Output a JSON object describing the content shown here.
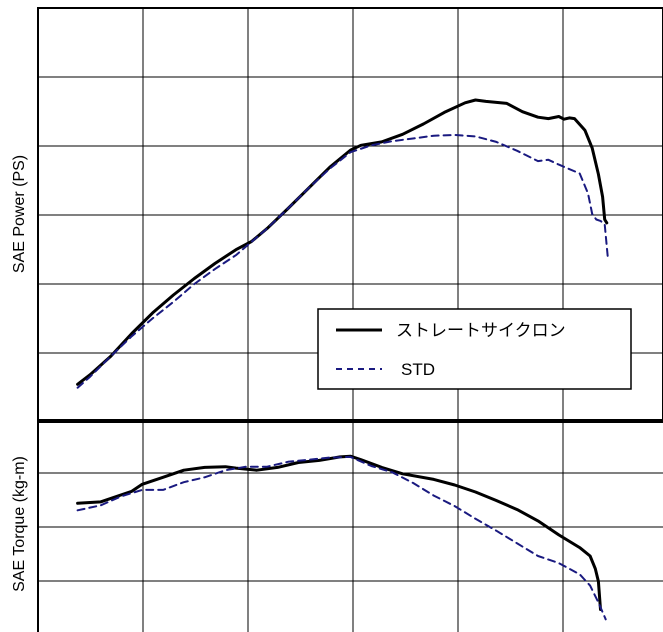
{
  "chart_data": [
    {
      "type": "line",
      "panel": "power",
      "ylabel": "SAE Power (PS)",
      "xlim": [
        0,
        6
      ],
      "ylim": [
        0,
        6
      ],
      "grid": true,
      "legend": {
        "placement": "bottom-right"
      },
      "series": [
        {
          "name": "ストレートサイクロン",
          "color": "#000000",
          "style": "solid",
          "points": [
            [
              0.38,
              0.52
            ],
            [
              0.5,
              0.66
            ],
            [
              0.7,
              0.93
            ],
            [
              0.9,
              1.26
            ],
            [
              1.1,
              1.56
            ],
            [
              1.3,
              1.82
            ],
            [
              1.5,
              2.06
            ],
            [
              1.7,
              2.28
            ],
            [
              1.9,
              2.48
            ],
            [
              2.05,
              2.6
            ],
            [
              2.2,
              2.79
            ],
            [
              2.4,
              3.08
            ],
            [
              2.6,
              3.38
            ],
            [
              2.8,
              3.68
            ],
            [
              3.0,
              3.93
            ],
            [
              3.1,
              4.0
            ],
            [
              3.3,
              4.05
            ],
            [
              3.5,
              4.16
            ],
            [
              3.7,
              4.31
            ],
            [
              3.9,
              4.48
            ],
            [
              4.1,
              4.62
            ],
            [
              4.2,
              4.66
            ],
            [
              4.3,
              4.64
            ],
            [
              4.5,
              4.61
            ],
            [
              4.65,
              4.49
            ],
            [
              4.8,
              4.41
            ],
            [
              4.9,
              4.39
            ],
            [
              5.0,
              4.42
            ],
            [
              5.05,
              4.38
            ],
            [
              5.1,
              4.4
            ],
            [
              5.15,
              4.39
            ],
            [
              5.25,
              4.22
            ],
            [
              5.32,
              3.96
            ],
            [
              5.38,
              3.58
            ],
            [
              5.42,
              3.25
            ],
            [
              5.44,
              2.92
            ],
            [
              5.46,
              2.87
            ]
          ]
        },
        {
          "name": "STD",
          "color": "#1a1a80",
          "style": "dashed",
          "points": [
            [
              0.38,
              0.47
            ],
            [
              0.5,
              0.63
            ],
            [
              0.7,
              0.93
            ],
            [
              0.9,
              1.22
            ],
            [
              1.1,
              1.48
            ],
            [
              1.3,
              1.72
            ],
            [
              1.5,
              1.98
            ],
            [
              1.7,
              2.2
            ],
            [
              1.9,
              2.4
            ],
            [
              2.0,
              2.53
            ],
            [
              2.2,
              2.79
            ],
            [
              2.4,
              3.08
            ],
            [
              2.6,
              3.38
            ],
            [
              2.8,
              3.66
            ],
            [
              3.0,
              3.9
            ],
            [
              3.2,
              4.0
            ],
            [
              3.4,
              4.06
            ],
            [
              3.6,
              4.1
            ],
            [
              3.8,
              4.14
            ],
            [
              4.0,
              4.15
            ],
            [
              4.2,
              4.13
            ],
            [
              4.4,
              4.05
            ],
            [
              4.6,
              3.92
            ],
            [
              4.8,
              3.77
            ],
            [
              4.9,
              3.79
            ],
            [
              5.0,
              3.72
            ],
            [
              5.2,
              3.59
            ],
            [
              5.28,
              3.3
            ],
            [
              5.32,
              3.0
            ],
            [
              5.36,
              2.92
            ],
            [
              5.4,
              2.9
            ],
            [
              5.44,
              2.85
            ],
            [
              5.47,
              2.37
            ]
          ]
        }
      ]
    },
    {
      "type": "line",
      "panel": "torque",
      "ylabel": "SAE Torque (kg-m)",
      "xlim": [
        0,
        6
      ],
      "ylim": [
        0,
        3
      ],
      "grid": true,
      "series": [
        {
          "name": "ストレートサイクロン",
          "color": "#000000",
          "style": "solid",
          "points": [
            [
              0.38,
              1.83
            ],
            [
              0.6,
              1.85
            ],
            [
              0.9,
              2.0
            ],
            [
              1.0,
              2.1
            ],
            [
              1.2,
              2.2
            ],
            [
              1.4,
              2.3
            ],
            [
              1.6,
              2.34
            ],
            [
              1.8,
              2.35
            ],
            [
              1.9,
              2.33
            ],
            [
              2.1,
              2.3
            ],
            [
              2.3,
              2.34
            ],
            [
              2.5,
              2.41
            ],
            [
              2.7,
              2.44
            ],
            [
              2.9,
              2.49
            ],
            [
              3.0,
              2.5
            ],
            [
              3.1,
              2.45
            ],
            [
              3.3,
              2.34
            ],
            [
              3.5,
              2.25
            ],
            [
              3.8,
              2.17
            ],
            [
              4.0,
              2.09
            ],
            [
              4.2,
              1.99
            ],
            [
              4.4,
              1.87
            ],
            [
              4.6,
              1.74
            ],
            [
              4.8,
              1.58
            ],
            [
              5.0,
              1.38
            ],
            [
              5.2,
              1.2
            ],
            [
              5.3,
              1.08
            ],
            [
              5.35,
              0.9
            ],
            [
              5.38,
              0.72
            ],
            [
              5.4,
              0.32
            ]
          ]
        },
        {
          "name": "STD",
          "color": "#1a1a80",
          "style": "dashed",
          "points": [
            [
              0.38,
              1.73
            ],
            [
              0.6,
              1.8
            ],
            [
              0.8,
              1.93
            ],
            [
              1.0,
              2.02
            ],
            [
              1.2,
              2.02
            ],
            [
              1.4,
              2.13
            ],
            [
              1.6,
              2.2
            ],
            [
              1.8,
              2.3
            ],
            [
              2.0,
              2.35
            ],
            [
              2.2,
              2.35
            ],
            [
              2.4,
              2.42
            ],
            [
              2.6,
              2.45
            ],
            [
              2.8,
              2.48
            ],
            [
              3.0,
              2.49
            ],
            [
              3.2,
              2.36
            ],
            [
              3.4,
              2.27
            ],
            [
              3.6,
              2.12
            ],
            [
              3.8,
              1.94
            ],
            [
              4.0,
              1.79
            ],
            [
              4.2,
              1.61
            ],
            [
              4.4,
              1.44
            ],
            [
              4.6,
              1.26
            ],
            [
              4.8,
              1.08
            ],
            [
              5.0,
              0.98
            ],
            [
              5.2,
              0.82
            ],
            [
              5.3,
              0.66
            ],
            [
              5.38,
              0.42
            ],
            [
              5.45,
              0.18
            ]
          ]
        }
      ]
    }
  ]
}
